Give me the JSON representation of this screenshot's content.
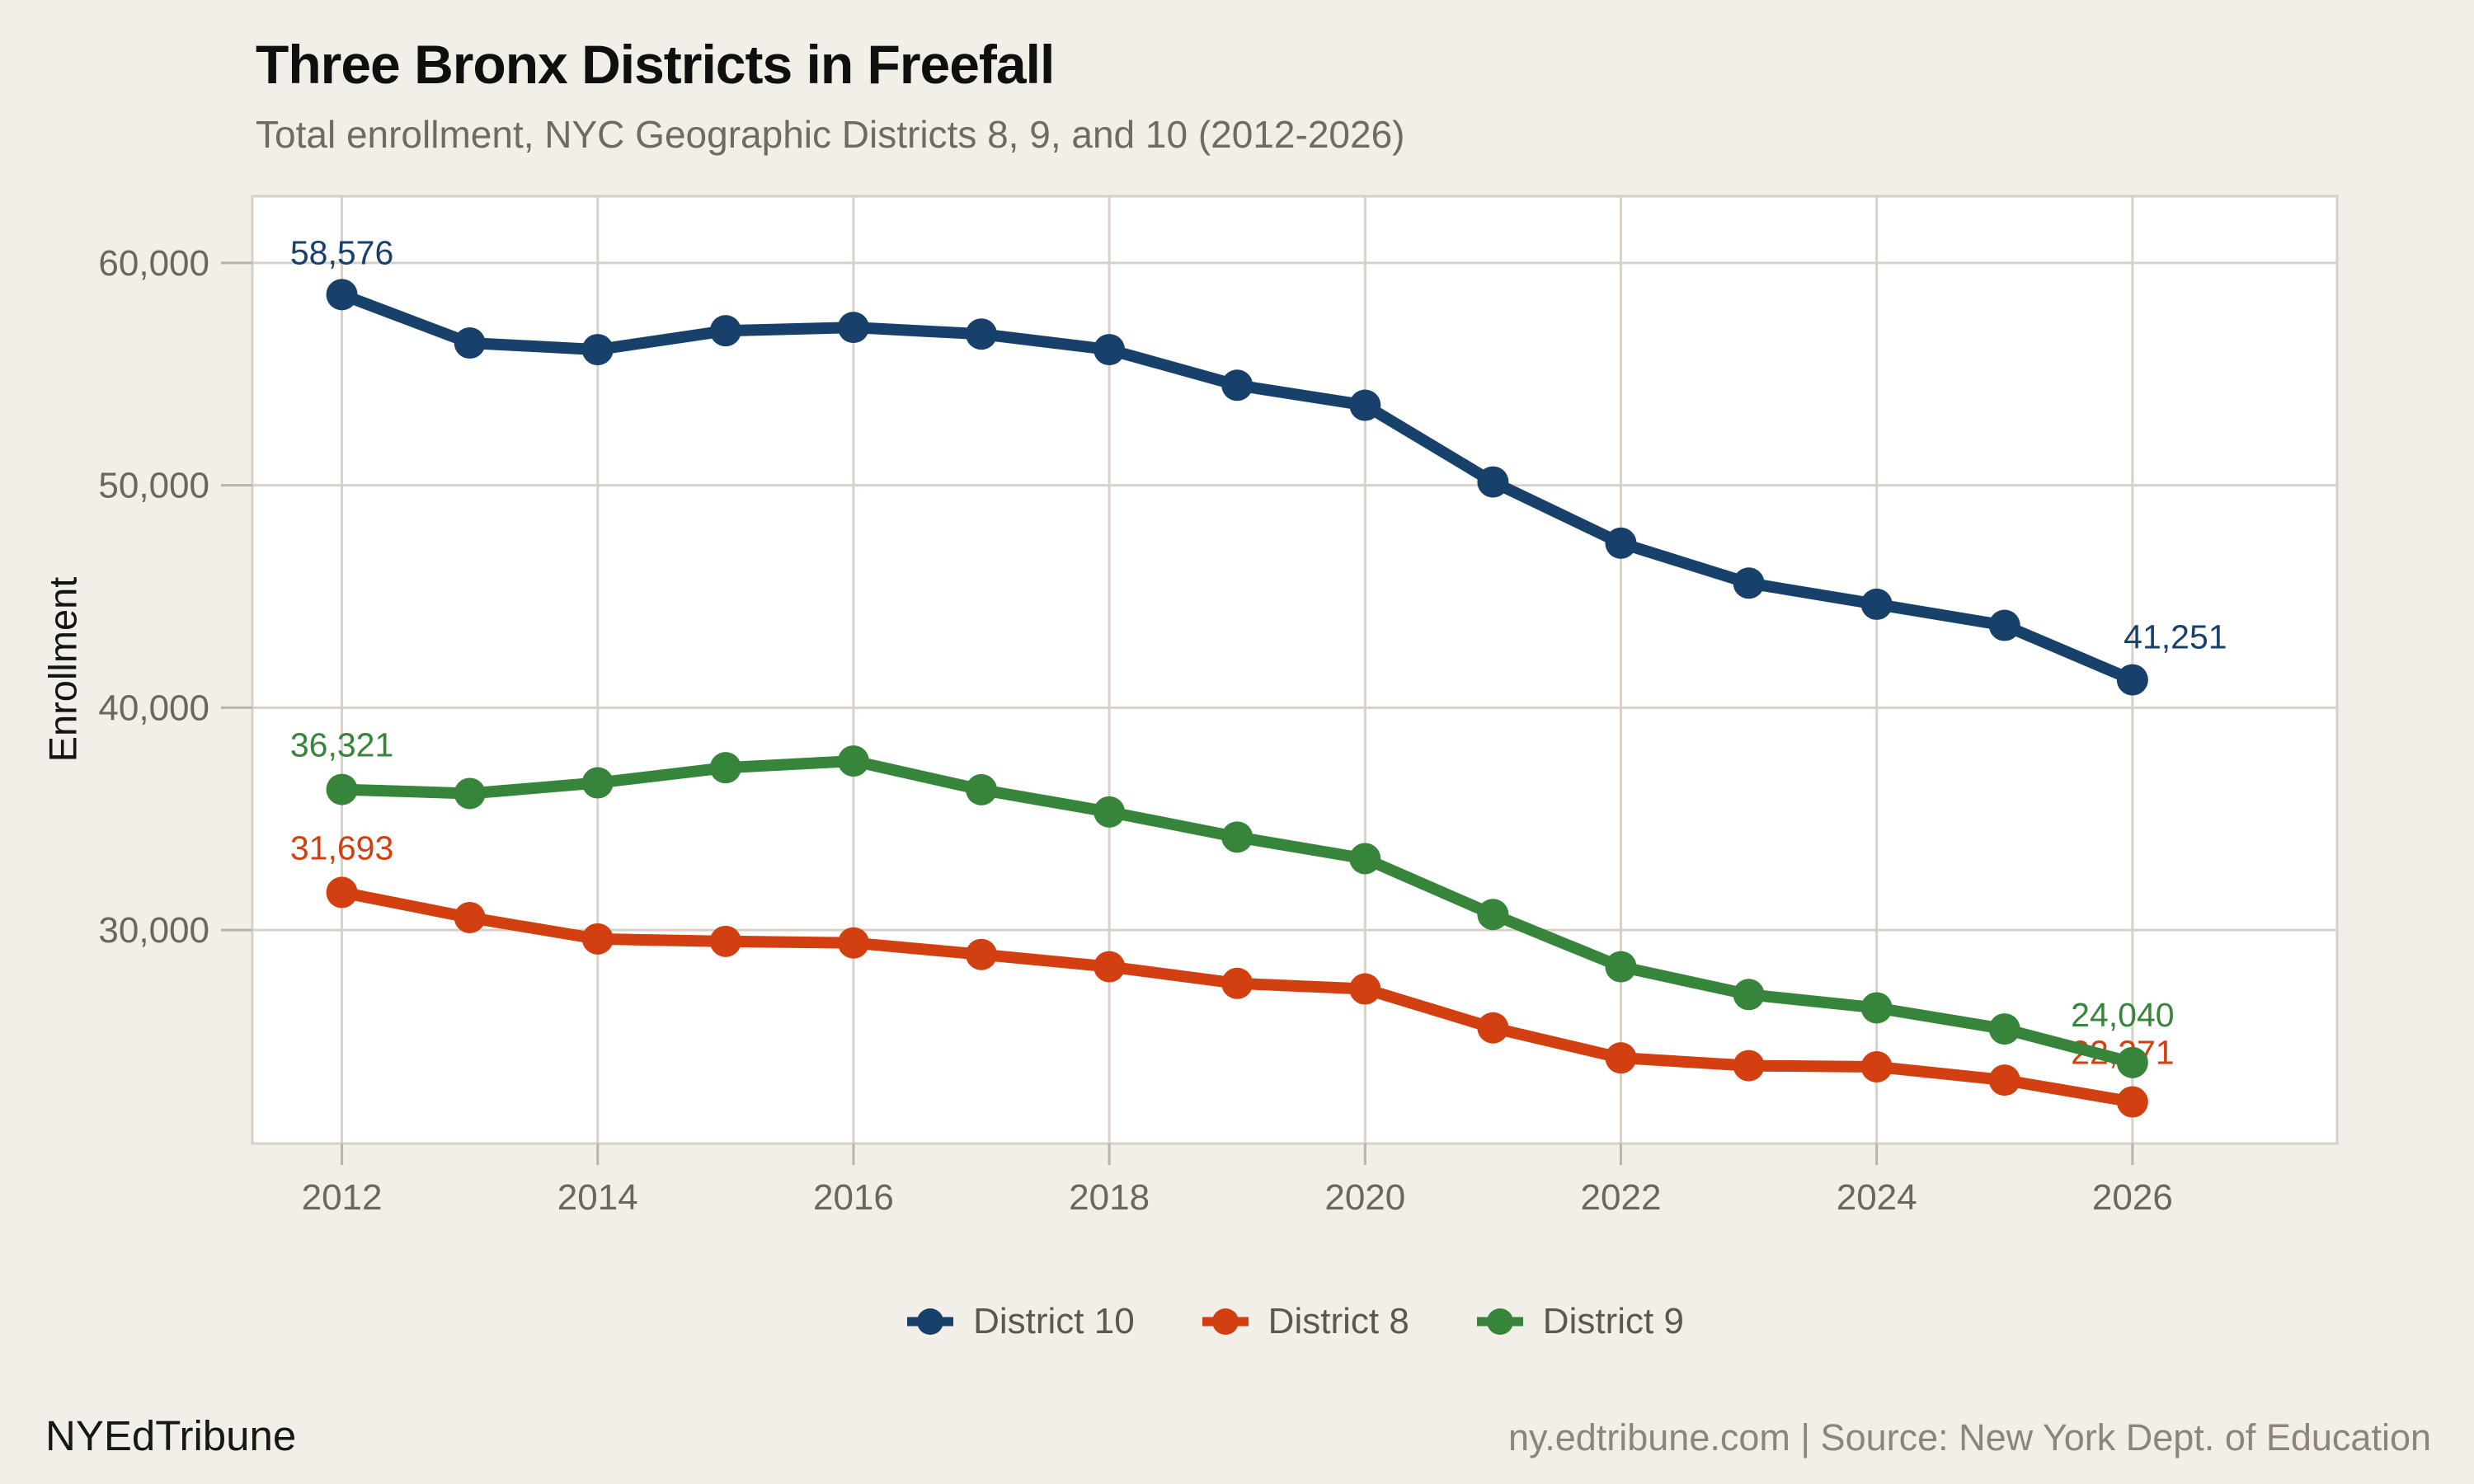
{
  "header": {
    "title": "Three Bronx Districts in Freefall",
    "subtitle": "Total enrollment, NYC Geographic Districts 8, 9, and 10 (2012-2026)"
  },
  "chart_data": {
    "type": "line",
    "title": "Three Bronx Districts in Freefall",
    "subtitle": "Total enrollment, NYC Geographic Districts 8, 9, and 10 (2012-2026)",
    "xlabel": "",
    "ylabel": "Enrollment",
    "x": [
      2012,
      2013,
      2014,
      2015,
      2016,
      2017,
      2018,
      2019,
      2020,
      2021,
      2022,
      2023,
      2024,
      2025,
      2026
    ],
    "x_tick_labels": [
      "2012",
      "2014",
      "2016",
      "2018",
      "2020",
      "2022",
      "2024",
      "2026"
    ],
    "y_ticks": [
      30000,
      40000,
      50000,
      60000
    ],
    "y_tick_labels": [
      "30,000",
      "40,000",
      "50,000",
      "60,000"
    ],
    "xlim": [
      2011.3,
      2027.6
    ],
    "ylim": [
      20400,
      63000
    ],
    "grid": true,
    "legend_position": "bottom-center",
    "series": [
      {
        "name": "District 10",
        "color": "#17406b",
        "values": [
          58576,
          56400,
          56100,
          56950,
          57100,
          56800,
          56100,
          54500,
          53600,
          50150,
          47400,
          45600,
          44650,
          43700,
          41251
        ],
        "first_point_label": "58,576",
        "last_point_label": "41,251"
      },
      {
        "name": "District 8",
        "color": "#d23f10",
        "values": [
          31693,
          30560,
          29600,
          29490,
          29420,
          28900,
          28350,
          27600,
          27350,
          25600,
          24250,
          23900,
          23850,
          23250,
          22271
        ],
        "first_point_label": "31,693",
        "last_point_label": "22,271"
      },
      {
        "name": "District 9",
        "color": "#37843b",
        "values": [
          36321,
          36140,
          36620,
          37300,
          37600,
          36310,
          35310,
          34180,
          33210,
          30700,
          28350,
          27100,
          26500,
          25550,
          24040
        ],
        "first_point_label": "36,321",
        "last_point_label": "24,040"
      }
    ]
  },
  "footer": {
    "brand": "NYEdTribune",
    "credit": "ny.edtribune.com | Source: New York Dept. of Education"
  },
  "colors": {
    "background": "#f2efe8",
    "plot_background": "#ffffff",
    "gridline": "#d7d1c8",
    "axis": "#b9b3a9",
    "tick_text": "#6b665f",
    "subtitle_text": "#6f6a62",
    "legend_text": "#5c5751",
    "footer_credit_text": "#8b857b"
  }
}
